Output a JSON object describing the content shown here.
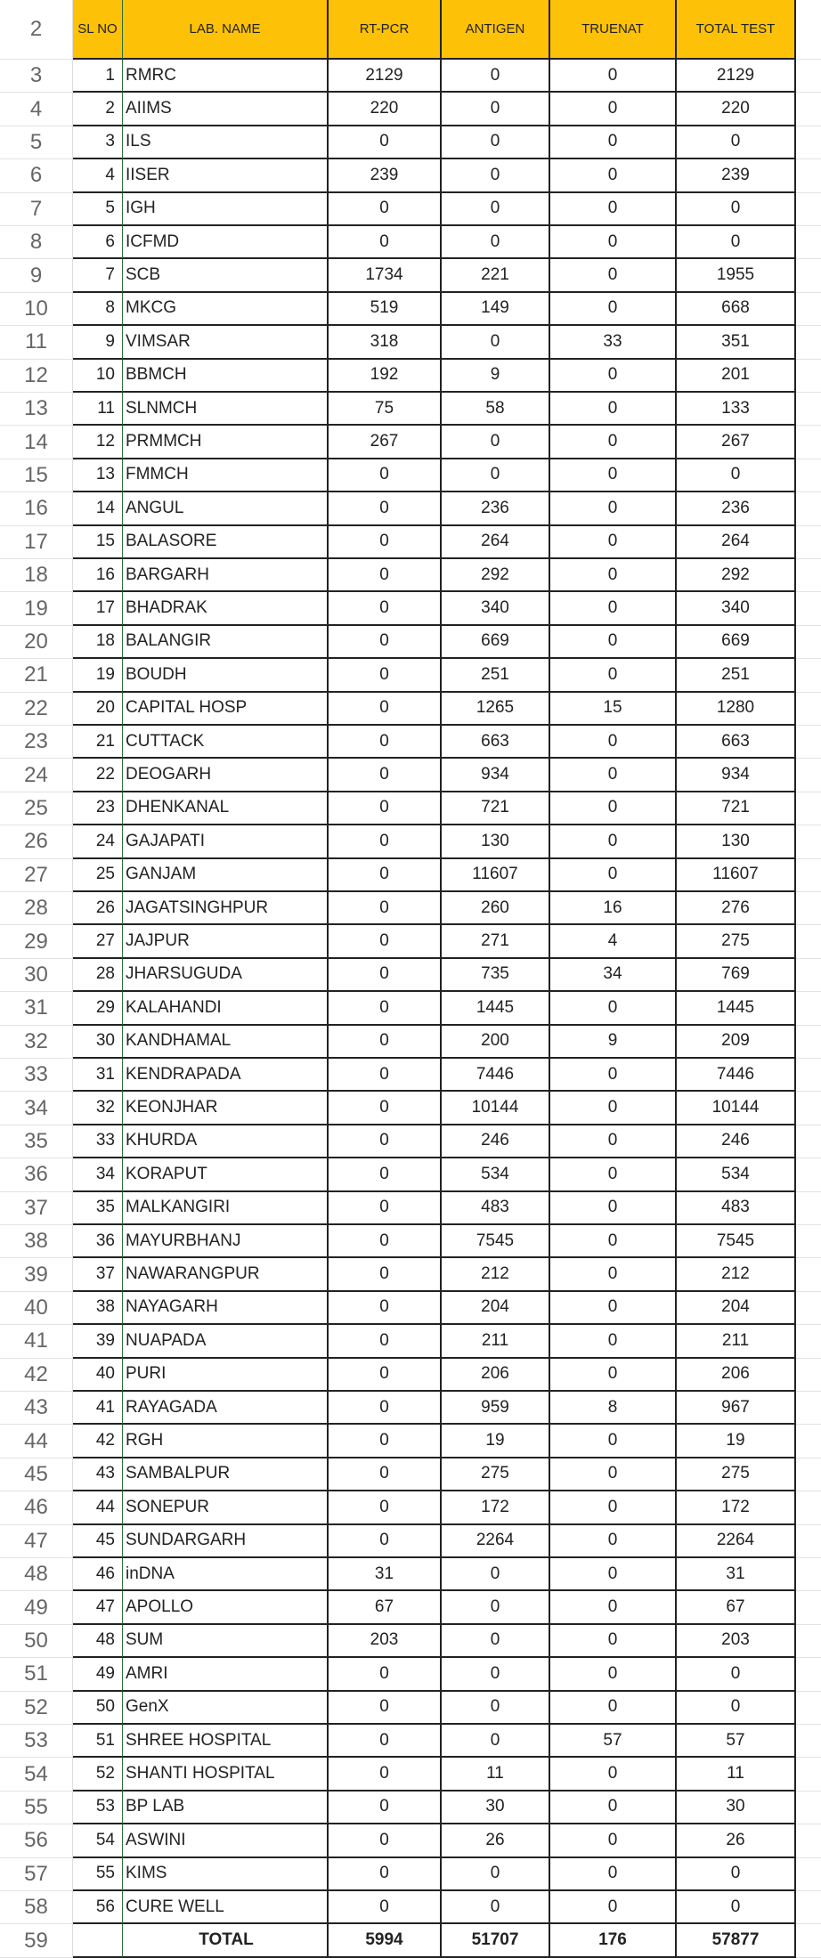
{
  "header": {
    "row_number": "2",
    "columns": [
      "SL NO",
      "LAB. NAME",
      "RT-PCR",
      "ANTIGEN",
      "TRUENAT",
      "TOTAL TEST"
    ]
  },
  "header_color": "#fdc107",
  "rows": [
    [
      "3",
      "1",
      "RMRC",
      "2129",
      "0",
      "0",
      "2129"
    ],
    [
      "4",
      "2",
      "AIIMS",
      "220",
      "0",
      "0",
      "220"
    ],
    [
      "5",
      "3",
      "ILS",
      "0",
      "0",
      "0",
      "0"
    ],
    [
      "6",
      "4",
      "IISER",
      "239",
      "0",
      "0",
      "239"
    ],
    [
      "7",
      "5",
      "IGH",
      "0",
      "0",
      "0",
      "0"
    ],
    [
      "8",
      "6",
      "ICFMD",
      "0",
      "0",
      "0",
      "0"
    ],
    [
      "9",
      "7",
      "SCB",
      "1734",
      "221",
      "0",
      "1955"
    ],
    [
      "10",
      "8",
      "MKCG",
      "519",
      "149",
      "0",
      "668"
    ],
    [
      "11",
      "9",
      "VIMSAR",
      "318",
      "0",
      "33",
      "351"
    ],
    [
      "12",
      "10",
      "BBMCH",
      "192",
      "9",
      "0",
      "201"
    ],
    [
      "13",
      "11",
      "SLNMCH",
      "75",
      "58",
      "0",
      "133"
    ],
    [
      "14",
      "12",
      "PRMMCH",
      "267",
      "0",
      "0",
      "267"
    ],
    [
      "15",
      "13",
      "FMMCH",
      "0",
      "0",
      "0",
      "0"
    ],
    [
      "16",
      "14",
      "ANGUL",
      "0",
      "236",
      "0",
      "236"
    ],
    [
      "17",
      "15",
      "BALASORE",
      "0",
      "264",
      "0",
      "264"
    ],
    [
      "18",
      "16",
      "BARGARH",
      "0",
      "292",
      "0",
      "292"
    ],
    [
      "19",
      "17",
      "BHADRAK",
      "0",
      "340",
      "0",
      "340"
    ],
    [
      "20",
      "18",
      "BALANGIR",
      "0",
      "669",
      "0",
      "669"
    ],
    [
      "21",
      "19",
      "BOUDH",
      "0",
      "251",
      "0",
      "251"
    ],
    [
      "22",
      "20",
      "CAPITAL HOSP",
      "0",
      "1265",
      "15",
      "1280"
    ],
    [
      "23",
      "21",
      "CUTTACK",
      "0",
      "663",
      "0",
      "663"
    ],
    [
      "24",
      "22",
      "DEOGARH",
      "0",
      "934",
      "0",
      "934"
    ],
    [
      "25",
      "23",
      "DHENKANAL",
      "0",
      "721",
      "0",
      "721"
    ],
    [
      "26",
      "24",
      "GAJAPATI",
      "0",
      "130",
      "0",
      "130"
    ],
    [
      "27",
      "25",
      "GANJAM",
      "0",
      "11607",
      "0",
      "11607"
    ],
    [
      "28",
      "26",
      "JAGATSINGHPUR",
      "0",
      "260",
      "16",
      "276"
    ],
    [
      "29",
      "27",
      "JAJPUR",
      "0",
      "271",
      "4",
      "275"
    ],
    [
      "30",
      "28",
      "JHARSUGUDA",
      "0",
      "735",
      "34",
      "769"
    ],
    [
      "31",
      "29",
      "KALAHANDI",
      "0",
      "1445",
      "0",
      "1445"
    ],
    [
      "32",
      "30",
      "KANDHAMAL",
      "0",
      "200",
      "9",
      "209"
    ],
    [
      "33",
      "31",
      "KENDRAPADA",
      "0",
      "7446",
      "0",
      "7446"
    ],
    [
      "34",
      "32",
      "KEONJHAR",
      "0",
      "10144",
      "0",
      "10144"
    ],
    [
      "35",
      "33",
      "KHURDA",
      "0",
      "246",
      "0",
      "246"
    ],
    [
      "36",
      "34",
      "KORAPUT",
      "0",
      "534",
      "0",
      "534"
    ],
    [
      "37",
      "35",
      "MALKANGIRI",
      "0",
      "483",
      "0",
      "483"
    ],
    [
      "38",
      "36",
      "MAYURBHANJ",
      "0",
      "7545",
      "0",
      "7545"
    ],
    [
      "39",
      "37",
      "NAWARANGPUR",
      "0",
      "212",
      "0",
      "212"
    ],
    [
      "40",
      "38",
      "NAYAGARH",
      "0",
      "204",
      "0",
      "204"
    ],
    [
      "41",
      "39",
      "NUAPADA",
      "0",
      "211",
      "0",
      "211"
    ],
    [
      "42",
      "40",
      "PURI",
      "0",
      "206",
      "0",
      "206"
    ],
    [
      "43",
      "41",
      "RAYAGADA",
      "0",
      "959",
      "8",
      "967"
    ],
    [
      "44",
      "42",
      "RGH",
      "0",
      "19",
      "0",
      "19"
    ],
    [
      "45",
      "43",
      "SAMBALPUR",
      "0",
      "275",
      "0",
      "275"
    ],
    [
      "46",
      "44",
      "SONEPUR",
      "0",
      "172",
      "0",
      "172"
    ],
    [
      "47",
      "45",
      "SUNDARGARH",
      "0",
      "2264",
      "0",
      "2264"
    ],
    [
      "48",
      "46",
      "inDNA",
      "31",
      "0",
      "0",
      "31"
    ],
    [
      "49",
      "47",
      "APOLLO",
      "67",
      "0",
      "0",
      "67"
    ],
    [
      "50",
      "48",
      "SUM",
      "203",
      "0",
      "0",
      "203"
    ],
    [
      "51",
      "49",
      "AMRI",
      "0",
      "0",
      "0",
      "0"
    ],
    [
      "52",
      "50",
      "GenX",
      "0",
      "0",
      "0",
      "0"
    ],
    [
      "53",
      "51",
      "SHREE HOSPITAL",
      "0",
      "0",
      "57",
      "57"
    ],
    [
      "54",
      "52",
      "SHANTI HOSPITAL",
      "0",
      "11",
      "0",
      "11"
    ],
    [
      "55",
      "53",
      "BP LAB",
      "0",
      "30",
      "0",
      "30"
    ],
    [
      "56",
      "54",
      "ASWINI",
      "0",
      "26",
      "0",
      "26"
    ],
    [
      "57",
      "55",
      "KIMS",
      "0",
      "0",
      "0",
      "0"
    ],
    [
      "58",
      "56",
      "CURE WELL",
      "0",
      "0",
      "0",
      "0"
    ]
  ],
  "total": {
    "row_number": "59",
    "label": "TOTAL",
    "rt_pcr": "5994",
    "antigen": "51707",
    "truenat": "176",
    "total_test": "57877"
  }
}
